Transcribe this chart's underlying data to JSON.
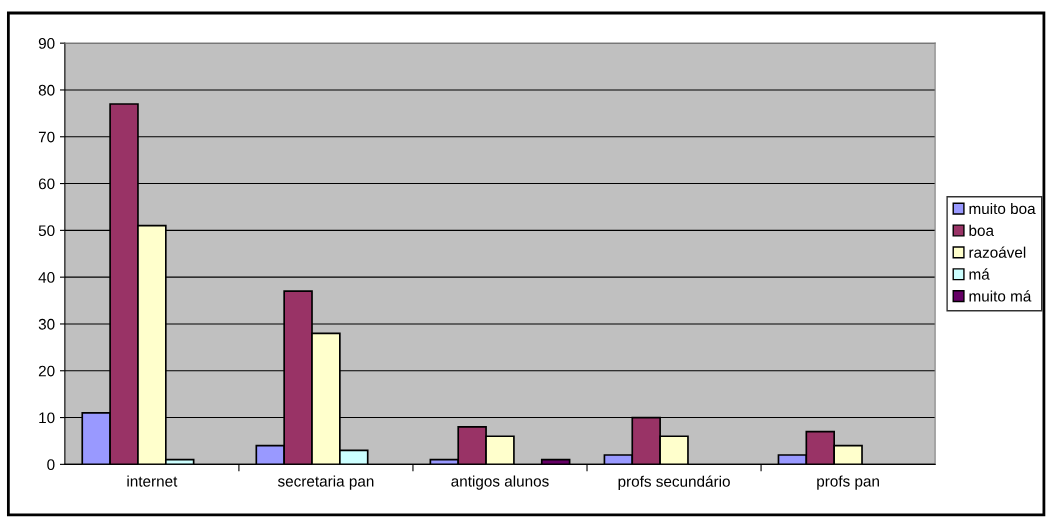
{
  "chart_data": {
    "type": "bar",
    "categories": [
      "internet",
      "secretaria pan",
      "antigos alunos",
      "profs secundário",
      "profs pan"
    ],
    "series": [
      {
        "name": "muito boa",
        "color": "#9999ff",
        "values": [
          11,
          4,
          1,
          2,
          2
        ]
      },
      {
        "name": "boa",
        "color": "#993366",
        "values": [
          77,
          37,
          8,
          10,
          7
        ]
      },
      {
        "name": "razoável",
        "color": "#ffffcc",
        "values": [
          51,
          28,
          6,
          6,
          4
        ]
      },
      {
        "name": "má",
        "color": "#ccffff",
        "values": [
          1,
          3,
          null,
          null,
          null
        ]
      },
      {
        "name": "muito má",
        "color": "#660066",
        "values": [
          null,
          null,
          1,
          null,
          null
        ]
      }
    ],
    "ylim": [
      0,
      90
    ],
    "yticks": [
      0,
      10,
      20,
      30,
      40,
      50,
      60,
      70,
      80,
      90
    ],
    "grid": "y",
    "legend": "right"
  }
}
